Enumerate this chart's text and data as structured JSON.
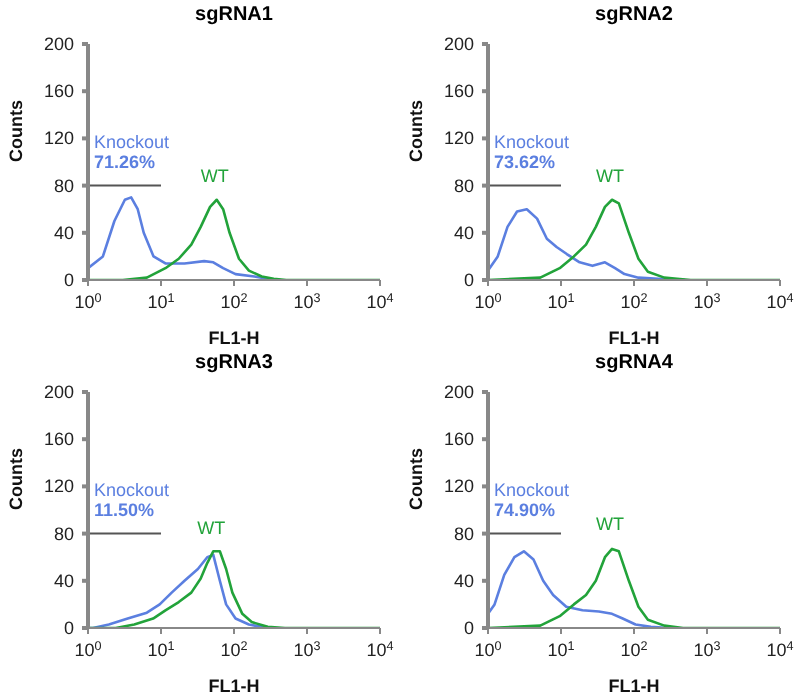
{
  "chart_data": [
    {
      "type": "line",
      "title": "sgRNA1",
      "xlabel": "FL1-H",
      "ylabel": "Counts",
      "log": "x",
      "xlim": [
        1,
        10000
      ],
      "xticks": [
        {
          "value": 1,
          "label": "10$^{0}$"
        },
        {
          "value": 10,
          "label": "10$^{1}$"
        },
        {
          "value": 100,
          "label": "10$^{2}$"
        },
        {
          "value": 1000,
          "label": "10$^{3}$"
        },
        {
          "value": 10000,
          "label": "10$^{4}$"
        }
      ],
      "ylim": [
        0,
        200
      ],
      "yticks": [
        0,
        40,
        80,
        120,
        160,
        200
      ],
      "grid": false,
      "legend": false,
      "marker": "none",
      "annotations": [
        "71.26%"
      ],
      "series": [
        {
          "name": "Knockout",
          "color": "#5b7fe0",
          "x": [
            1,
            1.6,
            2.3,
            3.2,
            3.9,
            4.8,
            5.8,
            7.9,
            11.5,
            21,
            39,
            52,
            71,
            105,
            190,
            290,
            430
          ],
          "values": [
            10,
            20,
            50,
            68,
            70,
            60,
            40,
            20,
            14,
            14,
            16,
            15,
            10,
            5,
            3,
            1,
            0
          ]
        },
        {
          "name": "WT",
          "color": "#22a33a",
          "x": [
            1,
            3,
            6.4,
            11.5,
            17.5,
            26,
            35,
            47,
            58,
            71,
            87,
            117,
            160,
            240,
            350,
            520,
            10000
          ],
          "values": [
            0,
            0,
            2,
            10,
            18,
            30,
            45,
            62,
            68,
            60,
            40,
            18,
            8,
            3,
            1,
            0,
            0
          ]
        },
        {
          "color": "#555555",
          "x": [
            1,
            10
          ],
          "values": [
            80,
            80
          ]
        }
      ]
    },
    {
      "type": "line",
      "title": "sgRNA2",
      "xlabel": "FL1-H",
      "ylabel": "Counts",
      "log": "x",
      "xlim": [
        1,
        10000
      ],
      "xticks": [
        {
          "value": 1,
          "label": "10$^{0}$"
        },
        {
          "value": 10,
          "label": "10$^{1}$"
        },
        {
          "value": 100,
          "label": "10$^{2}$"
        },
        {
          "value": 1000,
          "label": "10$^{3}$"
        },
        {
          "value": 10000,
          "label": "10$^{4}$"
        }
      ],
      "ylim": [
        0,
        200
      ],
      "yticks": [
        0,
        40,
        80,
        120,
        160,
        200
      ],
      "grid": false,
      "legend": false,
      "marker": "none",
      "annotations": [
        "73.62%"
      ],
      "series": [
        {
          "name": "Knockout",
          "color": "#5b7fe0",
          "x": [
            1,
            1.36,
            1.85,
            2.5,
            3.4,
            4.7,
            6.4,
            8.7,
            12,
            18,
            27,
            40,
            55,
            74,
            115,
            215,
            500
          ],
          "values": [
            8,
            20,
            45,
            58,
            60,
            52,
            35,
            28,
            22,
            15,
            12,
            15,
            10,
            5,
            2,
            1,
            0
          ]
        },
        {
          "name": "WT",
          "color": "#22a33a",
          "x": [
            1,
            5.2,
            9.6,
            15,
            22,
            30,
            40,
            50,
            62,
            85,
            115,
            155,
            260,
            390,
            600,
            10000
          ],
          "values": [
            0,
            2,
            10,
            20,
            30,
            45,
            62,
            68,
            65,
            40,
            18,
            7,
            2,
            1,
            0,
            0
          ]
        },
        {
          "color": "#555555",
          "x": [
            1,
            10
          ],
          "values": [
            80,
            80
          ]
        }
      ]
    },
    {
      "type": "line",
      "title": "sgRNA3",
      "xlabel": "FL1-H",
      "ylabel": "Counts",
      "log": "x",
      "xlim": [
        1,
        10000
      ],
      "xticks": [
        {
          "value": 1,
          "label": "10$^{0}$"
        },
        {
          "value": 10,
          "label": "10$^{1}$"
        },
        {
          "value": 100,
          "label": "10$^{2}$"
        },
        {
          "value": 1000,
          "label": "10$^{3}$"
        },
        {
          "value": 10000,
          "label": "10$^{4}$"
        }
      ],
      "ylim": [
        0,
        200
      ],
      "yticks": [
        0,
        40,
        80,
        120,
        160,
        200
      ],
      "grid": false,
      "legend": false,
      "marker": "none",
      "annotations": [
        "11.50%"
      ],
      "series": [
        {
          "name": "Knockout",
          "color": "#5b7fe0",
          "x": [
            1,
            1.17,
            1.93,
            3.5,
            6.4,
            9.6,
            14,
            21,
            32,
            43,
            52,
            64,
            78,
            105,
            160,
            235,
            350
          ],
          "values": [
            0,
            0,
            3,
            8,
            13,
            20,
            30,
            40,
            50,
            60,
            62,
            40,
            20,
            8,
            3,
            1,
            0
          ]
        },
        {
          "name": "WT",
          "color": "#22a33a",
          "x": [
            1,
            2.4,
            4.3,
            7.8,
            11.5,
            17.5,
            26,
            35,
            43,
            52,
            64,
            78,
            95,
            130,
            175,
            290,
            500,
            10000
          ],
          "values": [
            0,
            0,
            3,
            8,
            15,
            22,
            30,
            42,
            55,
            65,
            65,
            50,
            30,
            12,
            5,
            1,
            0,
            0
          ]
        },
        {
          "color": "#555555",
          "x": [
            1,
            10
          ],
          "values": [
            80,
            80
          ]
        }
      ]
    },
    {
      "type": "line",
      "title": "sgRNA4",
      "xlabel": "FL1-H",
      "ylabel": "Counts",
      "log": "x",
      "xlim": [
        1,
        10000
      ],
      "xticks": [
        {
          "value": 1,
          "label": "10$^{0}$"
        },
        {
          "value": 10,
          "label": "10$^{1}$"
        },
        {
          "value": 100,
          "label": "10$^{2}$"
        },
        {
          "value": 1000,
          "label": "10$^{3}$"
        },
        {
          "value": 10000,
          "label": "10$^{4}$"
        }
      ],
      "ylim": [
        0,
        200
      ],
      "yticks": [
        0,
        40,
        80,
        120,
        160,
        200
      ],
      "grid": false,
      "legend": false,
      "marker": "none",
      "annotations": [
        "74.90%"
      ],
      "series": [
        {
          "name": "Knockout",
          "color": "#5b7fe0",
          "x": [
            1,
            1.23,
            1.67,
            2.3,
            3.1,
            4.2,
            5.7,
            7.8,
            11.8,
            19.7,
            33,
            50,
            70,
            105,
            170,
            300
          ],
          "values": [
            12,
            20,
            45,
            60,
            65,
            58,
            40,
            28,
            18,
            15,
            14,
            12,
            8,
            3,
            1,
            0
          ]
        },
        {
          "name": "WT",
          "color": "#22a33a",
          "x": [
            1,
            5.2,
            9.6,
            15,
            22,
            30,
            40,
            50,
            62,
            85,
            115,
            155,
            260,
            470,
            10000
          ],
          "values": [
            0,
            2,
            10,
            20,
            28,
            40,
            60,
            67,
            65,
            40,
            18,
            7,
            2,
            0,
            0
          ]
        },
        {
          "color": "#555555",
          "x": [
            1,
            10
          ],
          "values": [
            80,
            80
          ]
        }
      ]
    }
  ]
}
